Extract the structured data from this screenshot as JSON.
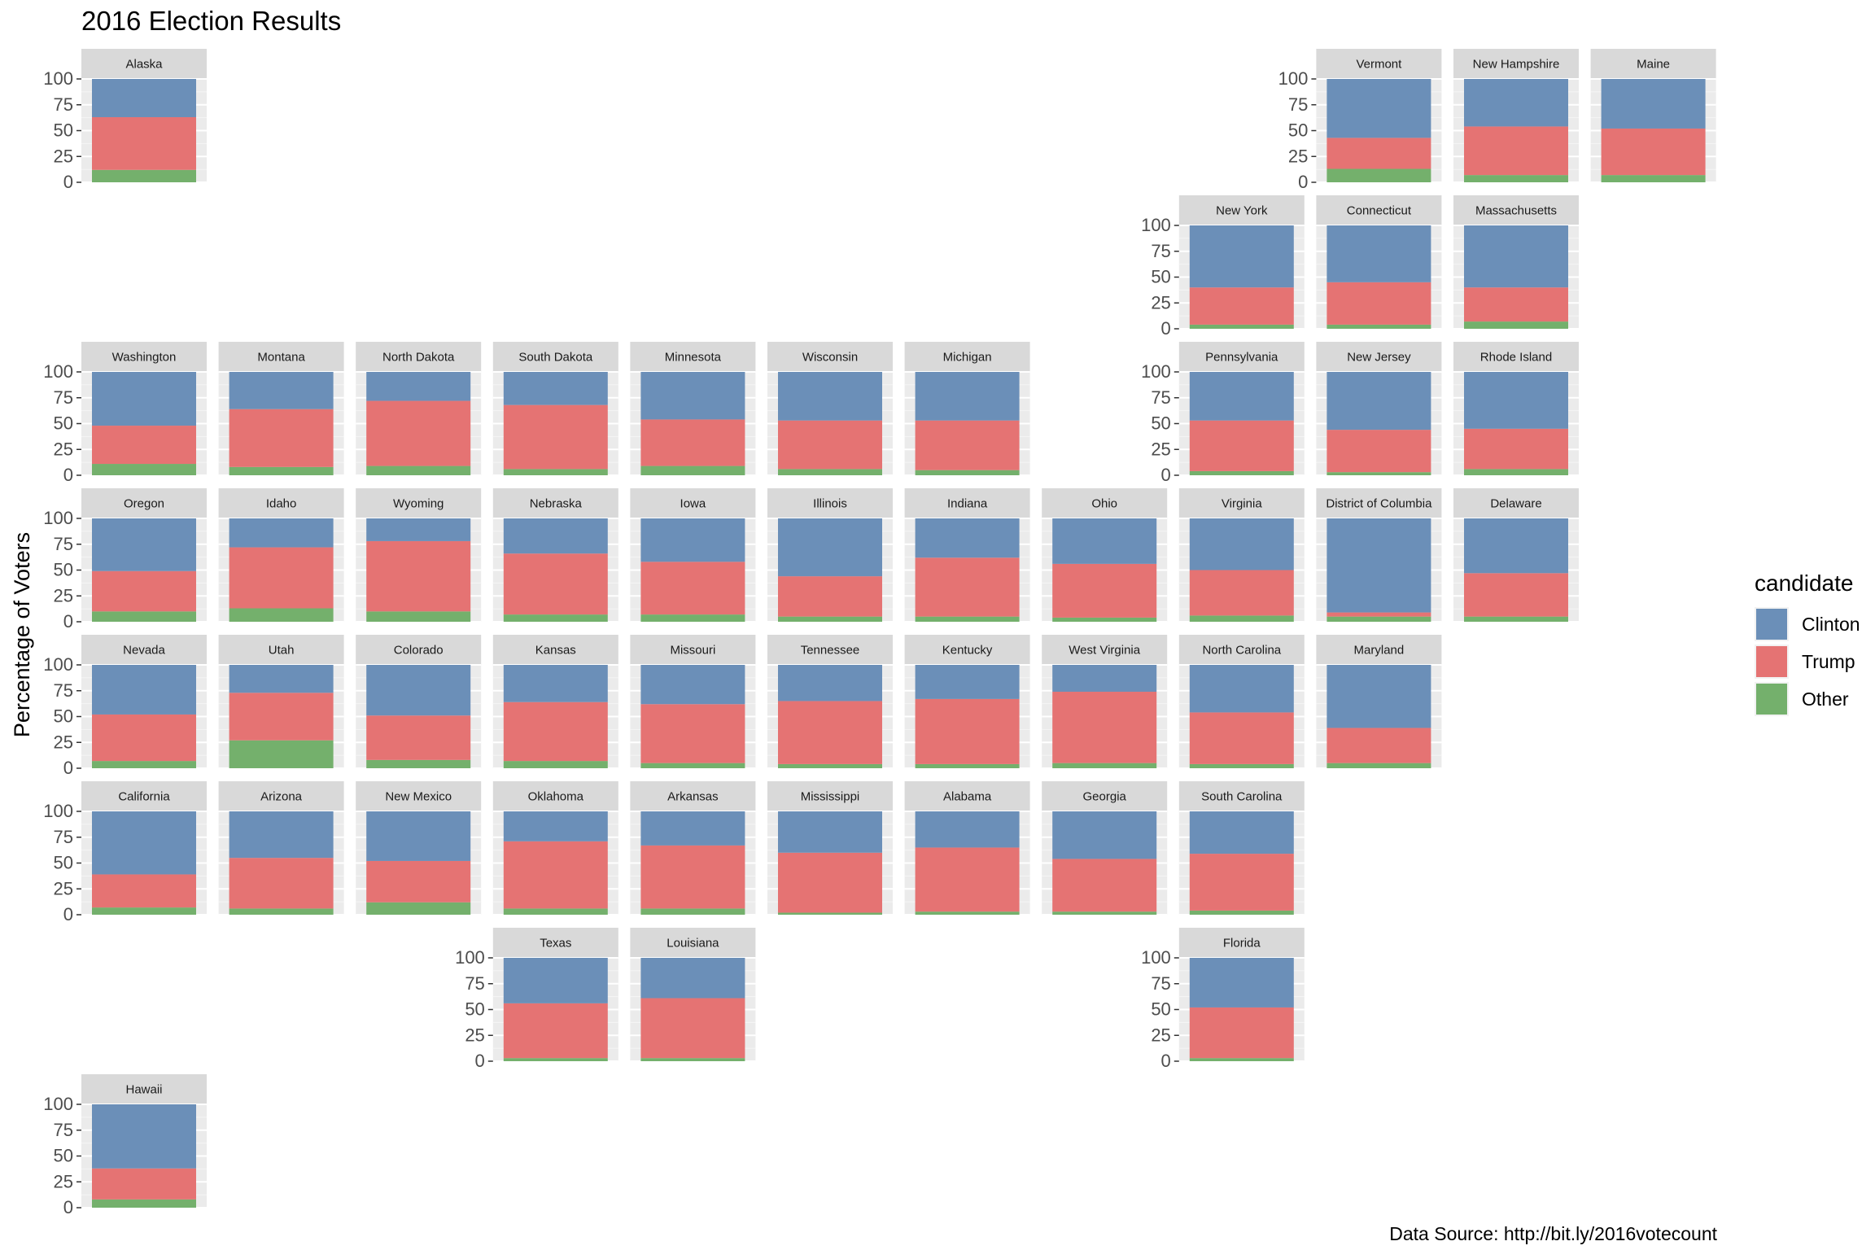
{
  "chart_data": {
    "type": "bar",
    "title": "2016 Election Results",
    "ylabel": "Percentage of Voters",
    "xlabel": "",
    "ylim": [
      0,
      100
    ],
    "yticks": [
      "0",
      "25",
      "50",
      "75",
      "100"
    ],
    "stacked": true,
    "legend": {
      "title": "candidate",
      "placement": "right",
      "items": [
        {
          "name": "Clinton",
          "color": "#6b8fb8"
        },
        {
          "name": "Trump",
          "color": "#e57373"
        },
        {
          "name": "Other",
          "color": "#74b06c"
        }
      ]
    },
    "caption": "Data Source: http://bit.ly/2016votecount",
    "layout": "geofacet-grid",
    "states": [
      {
        "name": "Alaska",
        "row": 0,
        "col": 0,
        "trump": 51,
        "other": 12
      },
      {
        "name": "Vermont",
        "row": 0,
        "col": 9,
        "trump": 30,
        "other": 13
      },
      {
        "name": "New Hampshire",
        "row": 0,
        "col": 10,
        "trump": 47,
        "other": 7
      },
      {
        "name": "Maine",
        "row": 0,
        "col": 11,
        "trump": 45,
        "other": 7
      },
      {
        "name": "New York",
        "row": 1,
        "col": 8,
        "trump": 36,
        "other": 4
      },
      {
        "name": "Connecticut",
        "row": 1,
        "col": 9,
        "trump": 41,
        "other": 4
      },
      {
        "name": "Massachusetts",
        "row": 1,
        "col": 10,
        "trump": 33,
        "other": 7
      },
      {
        "name": "Washington",
        "row": 2,
        "col": 0,
        "trump": 37,
        "other": 11
      },
      {
        "name": "Montana",
        "row": 2,
        "col": 1,
        "trump": 56,
        "other": 8
      },
      {
        "name": "North Dakota",
        "row": 2,
        "col": 2,
        "trump": 63,
        "other": 9
      },
      {
        "name": "South Dakota",
        "row": 2,
        "col": 3,
        "trump": 62,
        "other": 6
      },
      {
        "name": "Minnesota",
        "row": 2,
        "col": 4,
        "trump": 45,
        "other": 9
      },
      {
        "name": "Wisconsin",
        "row": 2,
        "col": 5,
        "trump": 47,
        "other": 6
      },
      {
        "name": "Michigan",
        "row": 2,
        "col": 6,
        "trump": 48,
        "other": 5
      },
      {
        "name": "Pennsylvania",
        "row": 2,
        "col": 8,
        "trump": 49,
        "other": 4
      },
      {
        "name": "New Jersey",
        "row": 2,
        "col": 9,
        "trump": 41,
        "other": 3
      },
      {
        "name": "Rhode Island",
        "row": 2,
        "col": 10,
        "trump": 39,
        "other": 6
      },
      {
        "name": "Oregon",
        "row": 3,
        "col": 0,
        "trump": 39,
        "other": 10
      },
      {
        "name": "Idaho",
        "row": 3,
        "col": 1,
        "trump": 59,
        "other": 13
      },
      {
        "name": "Wyoming",
        "row": 3,
        "col": 2,
        "trump": 68,
        "other": 10
      },
      {
        "name": "Nebraska",
        "row": 3,
        "col": 3,
        "trump": 59,
        "other": 7
      },
      {
        "name": "Iowa",
        "row": 3,
        "col": 4,
        "trump": 51,
        "other": 7
      },
      {
        "name": "Illinois",
        "row": 3,
        "col": 5,
        "trump": 39,
        "other": 5
      },
      {
        "name": "Indiana",
        "row": 3,
        "col": 6,
        "trump": 57,
        "other": 5
      },
      {
        "name": "Ohio",
        "row": 3,
        "col": 7,
        "trump": 52,
        "other": 4
      },
      {
        "name": "Virginia",
        "row": 3,
        "col": 8,
        "trump": 44,
        "other": 6
      },
      {
        "name": "District of Columbia",
        "row": 3,
        "col": 9,
        "trump": 4,
        "other": 5
      },
      {
        "name": "Delaware",
        "row": 3,
        "col": 10,
        "trump": 42,
        "other": 5
      },
      {
        "name": "Nevada",
        "row": 4,
        "col": 0,
        "trump": 45,
        "other": 7
      },
      {
        "name": "Utah",
        "row": 4,
        "col": 1,
        "trump": 46,
        "other": 27
      },
      {
        "name": "Colorado",
        "row": 4,
        "col": 2,
        "trump": 43,
        "other": 8
      },
      {
        "name": "Kansas",
        "row": 4,
        "col": 3,
        "trump": 57,
        "other": 7
      },
      {
        "name": "Missouri",
        "row": 4,
        "col": 4,
        "trump": 57,
        "other": 5
      },
      {
        "name": "Tennessee",
        "row": 4,
        "col": 5,
        "trump": 61,
        "other": 4
      },
      {
        "name": "Kentucky",
        "row": 4,
        "col": 6,
        "trump": 63,
        "other": 4
      },
      {
        "name": "West Virginia",
        "row": 4,
        "col": 7,
        "trump": 69,
        "other": 5
      },
      {
        "name": "North Carolina",
        "row": 4,
        "col": 8,
        "trump": 50,
        "other": 4
      },
      {
        "name": "Maryland",
        "row": 4,
        "col": 9,
        "trump": 34,
        "other": 5
      },
      {
        "name": "California",
        "row": 5,
        "col": 0,
        "trump": 32,
        "other": 7
      },
      {
        "name": "Arizona",
        "row": 5,
        "col": 1,
        "trump": 49,
        "other": 6
      },
      {
        "name": "New Mexico",
        "row": 5,
        "col": 2,
        "trump": 40,
        "other": 12
      },
      {
        "name": "Oklahoma",
        "row": 5,
        "col": 3,
        "trump": 65,
        "other": 6
      },
      {
        "name": "Arkansas",
        "row": 5,
        "col": 4,
        "trump": 61,
        "other": 6
      },
      {
        "name": "Mississippi",
        "row": 5,
        "col": 5,
        "trump": 58,
        "other": 2
      },
      {
        "name": "Alabama",
        "row": 5,
        "col": 6,
        "trump": 62,
        "other": 3
      },
      {
        "name": "Georgia",
        "row": 5,
        "col": 7,
        "trump": 51,
        "other": 3
      },
      {
        "name": "South Carolina",
        "row": 5,
        "col": 8,
        "trump": 55,
        "other": 4
      },
      {
        "name": "Texas",
        "row": 6,
        "col": 3,
        "trump": 53,
        "other": 3
      },
      {
        "name": "Louisiana",
        "row": 6,
        "col": 4,
        "trump": 58,
        "other": 3
      },
      {
        "name": "Florida",
        "row": 6,
        "col": 8,
        "trump": 49,
        "other": 3
      },
      {
        "name": "Hawaii",
        "row": 7,
        "col": 0,
        "trump": 30,
        "other": 8
      }
    ]
  }
}
